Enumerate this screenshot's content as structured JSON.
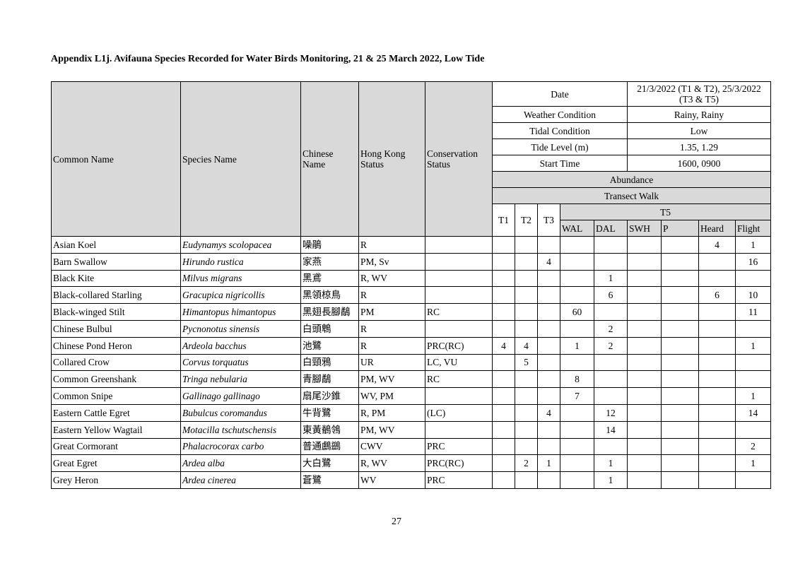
{
  "title": "Appendix L1j. Avifauna Species Recorded for Water Birds Monitoring, 21 & 25 March 2022, Low Tide",
  "headers": {
    "common_name": "Common Name",
    "species_name": "Species Name",
    "chinese_name": "Chinese Name",
    "hk_status": "Hong Kong Status",
    "conservation_status": "Conservation Status",
    "date_label": "Date",
    "date_value": "21/3/2022 (T1 & T2), 25/3/2022 (T3 & T5)",
    "weather_label": "Weather Condition",
    "weather_value": "Rainy, Rainy",
    "tidal_label": "Tidal Condition",
    "tidal_value": "Low",
    "tide_level_label": "Tide Level (m)",
    "tide_level_value": "1.35, 1.29",
    "start_time_label": "Start Time",
    "start_time_value": "1600, 0900",
    "abundance": "Abundance",
    "transect_walk": "Transect Walk",
    "t1": "T1",
    "t2": "T2",
    "t3": "T3",
    "t5": "T5",
    "wal": "WAL",
    "dal": "DAL",
    "swh": "SWH",
    "p": "P",
    "heard": "Heard",
    "flight": "Flight"
  },
  "rows": [
    {
      "common": "Asian Koel",
      "species": "Eudynamys scolopacea",
      "chinese": "噪鵑",
      "hk": "R",
      "cons": "",
      "v": [
        "",
        "",
        "",
        "",
        "",
        "",
        "",
        "4",
        "1"
      ]
    },
    {
      "common": "Barn Swallow",
      "species": "Hirundo rustica",
      "chinese": "家燕",
      "hk": "PM, Sv",
      "cons": "",
      "v": [
        "",
        "",
        "4",
        "",
        "",
        "",
        "",
        "",
        "16"
      ]
    },
    {
      "common": "Black Kite",
      "species": "Milvus migrans",
      "chinese": "黑鳶",
      "hk": "R, WV",
      "cons": "",
      "v": [
        "",
        "",
        "",
        "",
        "1",
        "",
        "",
        "",
        ""
      ]
    },
    {
      "common": "Black-collared Starling",
      "species": "Gracupica nigricollis",
      "chinese": "黑領椋鳥",
      "hk": "R",
      "cons": "",
      "v": [
        "",
        "",
        "",
        "",
        "6",
        "",
        "",
        "6",
        "10"
      ]
    },
    {
      "common": "Black-winged Stilt",
      "species": "Himantopus himantopus",
      "chinese": "黑翅長腳鷸",
      "hk": "PM",
      "cons": "RC",
      "v": [
        "",
        "",
        "",
        "60",
        "",
        "",
        "",
        "",
        "11"
      ]
    },
    {
      "common": "Chinese Bulbul",
      "species": "Pycnonotus sinensis",
      "chinese": "白頭鵯",
      "hk": "R",
      "cons": "",
      "v": [
        "",
        "",
        "",
        "",
        "2",
        "",
        "",
        "",
        ""
      ]
    },
    {
      "common": "Chinese Pond Heron",
      "species": "Ardeola bacchus",
      "chinese": "池鷺",
      "hk": "R",
      "cons": "PRC(RC)",
      "v": [
        "4",
        "4",
        "",
        "1",
        "2",
        "",
        "",
        "",
        "1"
      ]
    },
    {
      "common": "Collared Crow",
      "species": "Corvus torquatus",
      "chinese": "白頸鴉",
      "hk": "UR",
      "cons": "LC, VU",
      "v": [
        "",
        "5",
        "",
        "",
        "",
        "",
        "",
        "",
        ""
      ]
    },
    {
      "common": "Common Greenshank",
      "species": "Tringa nebularia",
      "chinese": "青腳鷸",
      "hk": "PM, WV",
      "cons": "RC",
      "v": [
        "",
        "",
        "",
        "8",
        "",
        "",
        "",
        "",
        ""
      ]
    },
    {
      "common": "Common Snipe",
      "species": "Gallinago gallinago",
      "chinese": "扇尾沙錐",
      "hk": "WV, PM",
      "cons": "",
      "v": [
        "",
        "",
        "",
        "7",
        "",
        "",
        "",
        "",
        "1"
      ]
    },
    {
      "common": "Eastern Cattle Egret",
      "species": "Bubulcus coromandus",
      "chinese": "牛背鷺",
      "hk": "R, PM",
      "cons": "(LC)",
      "v": [
        "",
        "",
        "4",
        "",
        "12",
        "",
        "",
        "",
        "14"
      ]
    },
    {
      "common": "Eastern Yellow Wagtail",
      "species": "Motacilla tschutschensis",
      "chinese": "東黃鶺鴒",
      "hk": "PM, WV",
      "cons": "",
      "v": [
        "",
        "",
        "",
        "",
        "14",
        "",
        "",
        "",
        ""
      ]
    },
    {
      "common": "Great Cormorant",
      "species": "Phalacrocorax carbo",
      "chinese": "普通鸕鷀",
      "hk": "CWV",
      "cons": "PRC",
      "v": [
        "",
        "",
        "",
        "",
        "",
        "",
        "",
        "",
        "2"
      ]
    },
    {
      "common": "Great Egret",
      "species": "Ardea alba",
      "chinese": "大白鷺",
      "hk": "R, WV",
      "cons": "PRC(RC)",
      "v": [
        "",
        "2",
        "1",
        "",
        "1",
        "",
        "",
        "",
        "1"
      ]
    },
    {
      "common": "Grey Heron",
      "species": "Ardea cinerea",
      "chinese": "蒼鷺",
      "hk": "WV",
      "cons": "PRC",
      "v": [
        "",
        "",
        "",
        "",
        "1",
        "",
        "",
        "",
        ""
      ]
    }
  ],
  "page_number": "27",
  "colors": {
    "header_gray": "#d9d9d9"
  }
}
